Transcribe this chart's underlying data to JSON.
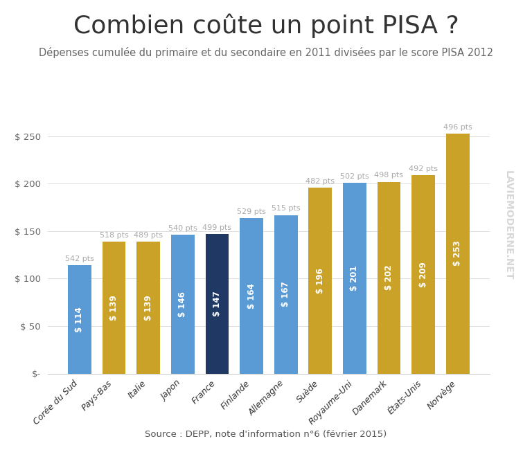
{
  "title": "Combien coûte un point PISA ?",
  "subtitle": "Dépenses cumulée du primaire et du secondaire en 2011 divisées par le score PISA 2012",
  "source": "Source : DEPP, note d'information n°6 (février 2015)",
  "categories": [
    "Corée du Sud",
    "Pays-Bas",
    "Italie",
    "Japon",
    "France",
    "Finlande",
    "Allemagne",
    "Suède",
    "Royaume-Uni",
    "Danemark",
    "États-Unis",
    "Norvège"
  ],
  "values": [
    114,
    139,
    139,
    146,
    147,
    164,
    167,
    196,
    201,
    202,
    209,
    253
  ],
  "pisa_scores": [
    542,
    518,
    489,
    540,
    499,
    529,
    515,
    482,
    502,
    498,
    492,
    496
  ],
  "bar_colors": [
    "#5B9BD5",
    "#C9A227",
    "#C9A227",
    "#5B9BD5",
    "#1F3864",
    "#5B9BD5",
    "#5B9BD5",
    "#C9A227",
    "#5B9BD5",
    "#C9A227",
    "#C9A227",
    "#C9A227"
  ],
  "value_labels": [
    "$ 114",
    "$ 139",
    "$ 139",
    "$ 146",
    "$ 147",
    "$ 164",
    "$ 167",
    "$ 196",
    "$ 201",
    "$ 202",
    "$ 209",
    "$ 253"
  ],
  "background_color": "#ffffff",
  "ylim": [
    0,
    275
  ],
  "yticks": [
    0,
    50,
    100,
    150,
    200,
    250
  ],
  "ytick_labels": [
    "$-",
    "$ 50",
    "$ 100",
    "$ 150",
    "$ 200",
    "$ 250"
  ],
  "watermark": "LAVIEMODERNE.NET",
  "title_fontsize": 26,
  "subtitle_fontsize": 10.5,
  "source_fontsize": 9.5,
  "bar_width": 0.68
}
